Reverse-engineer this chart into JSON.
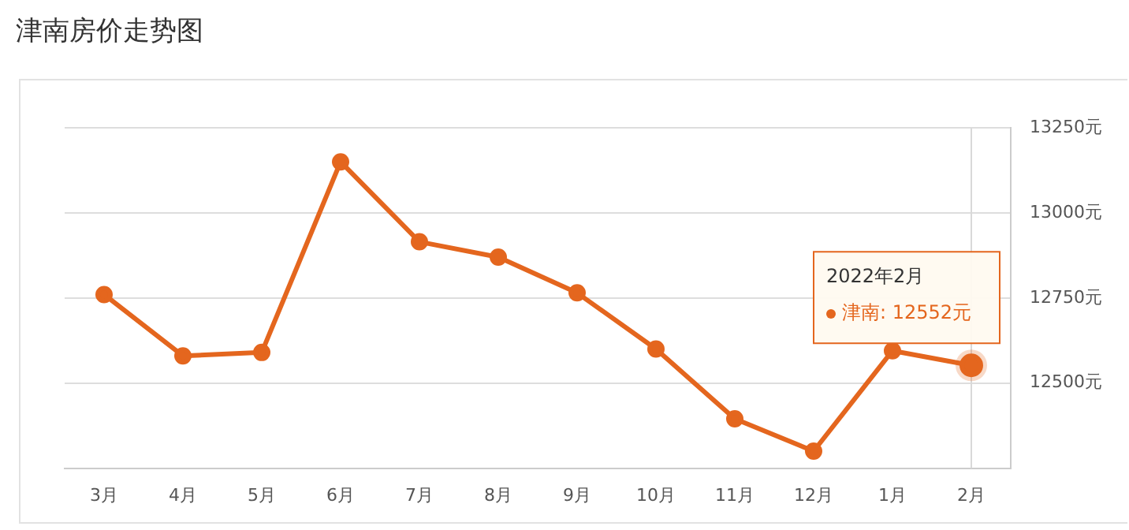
{
  "chart_data": {
    "type": "line",
    "title": "津南房价走势图",
    "categories": [
      "3月",
      "4月",
      "5月",
      "6月",
      "7月",
      "8月",
      "9月",
      "10月",
      "11月",
      "12月",
      "1月",
      "2月"
    ],
    "series": [
      {
        "color": "#e4661e",
        "values": [
          12760,
          12580,
          12590,
          13150,
          12915,
          12870,
          12765,
          12600,
          12395,
          12300,
          12595,
          12552
        ]
      }
    ],
    "ylim": [
      12250,
      13250
    ],
    "yticks": [
      {
        "value": 12250,
        "label": null
      },
      {
        "value": 12500,
        "label": "12500元"
      },
      {
        "value": 12750,
        "label": "12750元"
      },
      {
        "value": 13000,
        "label": "13000元"
      },
      {
        "value": 13250,
        "label": "13250元"
      }
    ],
    "grid": "y",
    "legend": false,
    "marker": "circle",
    "line_style": "solid",
    "ref_lines": [
      {
        "axis": "x",
        "value": "2月",
        "color": "#d9d9d9"
      }
    ],
    "annotations": [
      "2022年2月",
      {
        "text": "津南: 12552元",
        "x": "2月",
        "y": 12552
      }
    ]
  }
}
